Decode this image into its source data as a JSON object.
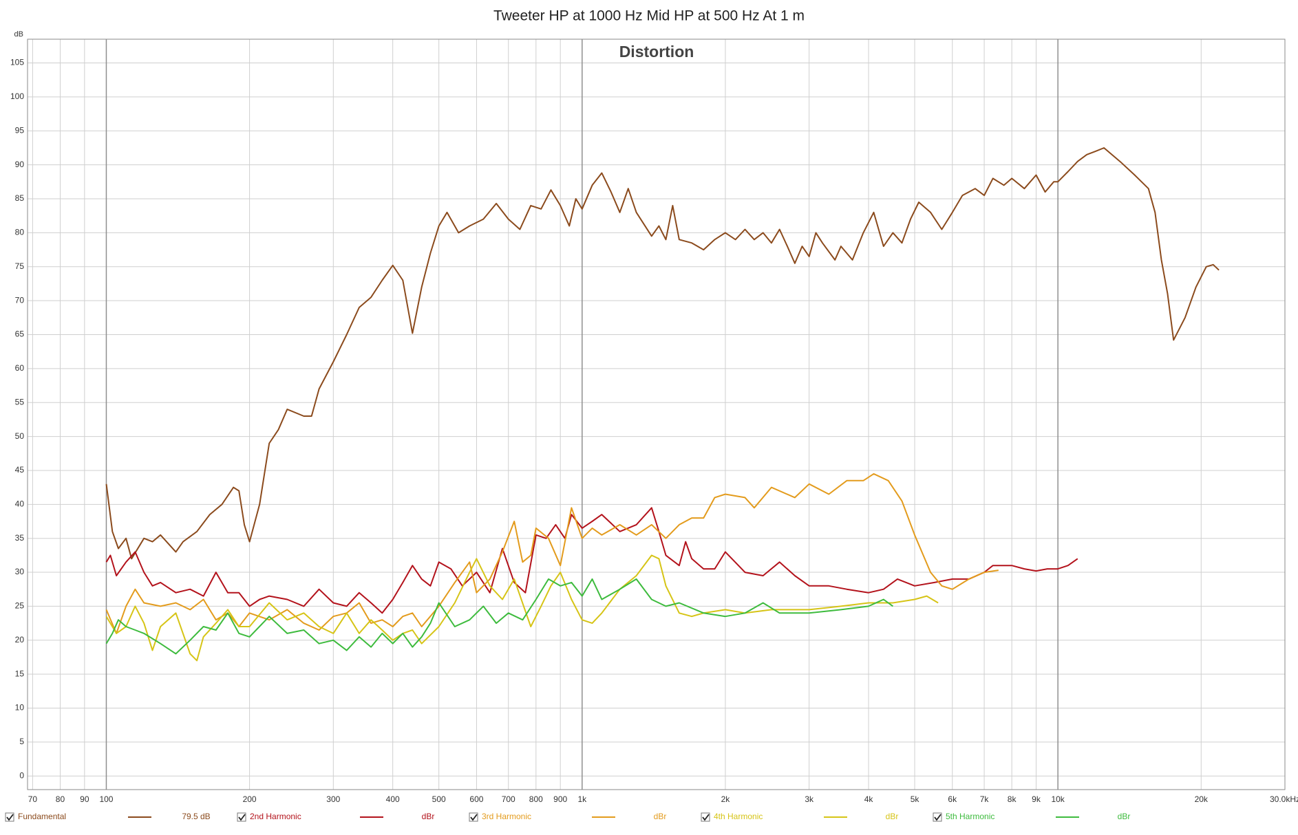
{
  "chart_data": {
    "type": "line",
    "title": "Tweeter HP at 1000 Hz Mid HP at 500 Hz At 1 m",
    "annotation": "Distortion",
    "y_label": "dB",
    "log_x": true,
    "grid": true,
    "legend_position": "bottom",
    "xlim": [
      68.3,
      30000
    ],
    "ylim": [
      -2,
      108.5
    ],
    "xticks": [
      70,
      80,
      90,
      100,
      200,
      300,
      400,
      500,
      600,
      700,
      800,
      900,
      {
        "value": 1000,
        "label": "1k"
      },
      {
        "value": 2000,
        "label": "2k"
      },
      {
        "value": 3000,
        "label": "3k"
      },
      {
        "value": 4000,
        "label": "4k"
      },
      {
        "value": 5000,
        "label": "5k"
      },
      {
        "value": 6000,
        "label": "6k"
      },
      {
        "value": 7000,
        "label": "7k"
      },
      {
        "value": 8000,
        "label": "8k"
      },
      {
        "value": 9000,
        "label": "9k"
      },
      {
        "value": 10000,
        "label": "10k"
      },
      {
        "value": 20000,
        "label": "20k"
      },
      {
        "value": 30000,
        "label": "30.0kHz"
      }
    ],
    "yticks": [
      0,
      5,
      10,
      15,
      20,
      25,
      30,
      35,
      40,
      45,
      50,
      55,
      60,
      65,
      70,
      75,
      80,
      85,
      90,
      95,
      100,
      105
    ],
    "series": [
      {
        "name": "Fundamental",
        "color": "#8b4a1c",
        "legend_value": "79.5 dB",
        "x": [
          100,
          103,
          106,
          110,
          113,
          120,
          125,
          130,
          140,
          145,
          155,
          165,
          175,
          185,
          190,
          195,
          200,
          210,
          220,
          230,
          240,
          260,
          270,
          280,
          300,
          320,
          340,
          360,
          380,
          400,
          420,
          440,
          460,
          480,
          500,
          520,
          550,
          580,
          620,
          660,
          700,
          740,
          780,
          820,
          860,
          900,
          940,
          970,
          1000,
          1050,
          1100,
          1150,
          1200,
          1250,
          1300,
          1400,
          1450,
          1500,
          1550,
          1600,
          1700,
          1800,
          1900,
          2000,
          2100,
          2200,
          2300,
          2400,
          2500,
          2600,
          2700,
          2800,
          2900,
          3000,
          3100,
          3200,
          3400,
          3500,
          3700,
          3900,
          4100,
          4300,
          4500,
          4700,
          4900,
          5100,
          5400,
          5700,
          6000,
          6300,
          6700,
          7000,
          7300,
          7700,
          8000,
          8500,
          9000,
          9400,
          9800,
          10000,
          10500,
          11000,
          11500,
          12000,
          12500,
          13500,
          14500,
          15500,
          16000,
          16500,
          17000,
          17500,
          18500,
          19500,
          20500,
          21200,
          21800
        ],
        "values": [
          43,
          36,
          33.5,
          35,
          32,
          35,
          34.5,
          35.5,
          33,
          34.5,
          36,
          38.5,
          40,
          42.5,
          42,
          37,
          34.5,
          40,
          49,
          51,
          54,
          53,
          53,
          57,
          61,
          65,
          69,
          70.5,
          73,
          75.2,
          73,
          65.2,
          72,
          77,
          81,
          83,
          80,
          81,
          82,
          84.3,
          82,
          80.5,
          84,
          83.5,
          86.3,
          84,
          81,
          85,
          83.5,
          87,
          88.8,
          86,
          83,
          86.5,
          83,
          79.5,
          81,
          79,
          84,
          79,
          78.5,
          77.5,
          79,
          80,
          79,
          80.5,
          79,
          80,
          78.5,
          80.5,
          78,
          75.5,
          78,
          76.5,
          80,
          78.5,
          76,
          78,
          76,
          80,
          83,
          78,
          80,
          78.5,
          82,
          84.5,
          83,
          80.5,
          83,
          85.5,
          86.5,
          85.5,
          88,
          87,
          88,
          86.5,
          88.5,
          86,
          87.5,
          87.5,
          89,
          90.5,
          91.5,
          92,
          92.5,
          90.5,
          88.5,
          86.5,
          83,
          76,
          71,
          64.2,
          67.5,
          72,
          75,
          75.3,
          74.5
        ]
      },
      {
        "name": "2nd Harmonic",
        "color": "#b3121b",
        "legend_value": "dBr",
        "x": [
          100,
          102,
          105,
          110,
          115,
          120,
          125,
          130,
          140,
          150,
          160,
          170,
          180,
          190,
          200,
          210,
          220,
          240,
          260,
          280,
          300,
          320,
          340,
          360,
          380,
          400,
          420,
          440,
          460,
          480,
          500,
          530,
          560,
          600,
          640,
          680,
          720,
          760,
          800,
          840,
          880,
          920,
          950,
          1000,
          1050,
          1100,
          1200,
          1300,
          1400,
          1450,
          1500,
          1600,
          1650,
          1700,
          1800,
          1900,
          2000,
          2200,
          2400,
          2600,
          2800,
          3000,
          3300,
          3600,
          4000,
          4300,
          4600,
          5000,
          5500,
          6000,
          6500,
          7000,
          7300,
          8000,
          8500,
          9000,
          9500,
          10000,
          10500,
          11000
        ],
        "values": [
          31.5,
          32.5,
          29.5,
          31.5,
          33,
          30,
          28,
          28.5,
          27,
          27.5,
          26.5,
          30,
          27,
          27,
          25,
          26,
          26.5,
          26,
          25,
          27.5,
          25.5,
          25,
          27,
          25.5,
          24,
          26,
          28.5,
          31,
          29,
          28,
          31.5,
          30.5,
          28,
          30,
          27,
          33.5,
          28.5,
          27,
          35.5,
          35,
          37,
          35,
          38.5,
          36.5,
          37.5,
          38.5,
          36,
          37,
          39.5,
          36,
          32.5,
          31,
          34.5,
          32,
          30.5,
          30.5,
          33,
          30,
          29.5,
          31.5,
          29.5,
          28,
          28,
          27.5,
          27,
          27.5,
          29,
          28,
          28.5,
          29,
          29,
          30,
          31,
          31,
          30.5,
          30.2,
          30.5,
          30.5,
          31,
          32
        ]
      },
      {
        "name": "3rd Harmonic",
        "color": "#e39b1c",
        "legend_value": "dBr",
        "x": [
          100,
          105,
          110,
          115,
          120,
          130,
          140,
          150,
          160,
          170,
          180,
          190,
          200,
          220,
          240,
          260,
          280,
          300,
          320,
          340,
          360,
          380,
          400,
          420,
          440,
          460,
          500,
          540,
          580,
          600,
          640,
          680,
          720,
          750,
          780,
          800,
          850,
          900,
          950,
          1000,
          1050,
          1100,
          1200,
          1300,
          1400,
          1500,
          1600,
          1700,
          1800,
          1900,
          2000,
          2200,
          2300,
          2500,
          2800,
          3000,
          3300,
          3600,
          3900,
          4100,
          4400,
          4700,
          5000,
          5400,
          5700,
          6000,
          6500,
          7000,
          7500
        ],
        "values": [
          24.5,
          21,
          25,
          27.5,
          25.5,
          25,
          25.5,
          24.5,
          26,
          23,
          24,
          22,
          24,
          23,
          24.5,
          22.5,
          21.5,
          23.5,
          24,
          25.5,
          22.5,
          23,
          22,
          23.5,
          24,
          22,
          25,
          28.5,
          31.5,
          27,
          29,
          33,
          37.5,
          31.5,
          32.5,
          36.5,
          35,
          31,
          39.5,
          35,
          36.5,
          35.5,
          37,
          35.5,
          37,
          35,
          37,
          38,
          38,
          41,
          41.5,
          41,
          39.5,
          42.5,
          41,
          43,
          41.5,
          43.5,
          43.5,
          44.5,
          43.5,
          40.5,
          35.5,
          30,
          28,
          27.5,
          29,
          30,
          30.3
        ]
      },
      {
        "name": "4th Harmonic",
        "color": "#d6c416",
        "legend_value": "dBr",
        "x": [
          100,
          105,
          110,
          115,
          120,
          125,
          130,
          140,
          150,
          155,
          160,
          170,
          180,
          190,
          200,
          220,
          240,
          260,
          280,
          300,
          320,
          340,
          360,
          380,
          400,
          420,
          440,
          460,
          500,
          540,
          580,
          600,
          640,
          680,
          720,
          780,
          820,
          860,
          900,
          950,
          1000,
          1050,
          1100,
          1200,
          1300,
          1400,
          1450,
          1500,
          1600,
          1700,
          1800,
          2000,
          2200,
          2500,
          3000,
          3500,
          4000,
          4500,
          5000,
          5300,
          5600
        ],
        "values": [
          23.5,
          21,
          22,
          25,
          22.5,
          18.5,
          22,
          24,
          18,
          17,
          20.5,
          22.5,
          24.5,
          22,
          22,
          25.5,
          23,
          24,
          22,
          21,
          24,
          21,
          23,
          21.5,
          20,
          21,
          21.5,
          19.5,
          22,
          25.5,
          30,
          32,
          28,
          26,
          29,
          22,
          25,
          28,
          30,
          26,
          23,
          22.5,
          24,
          27.5,
          29.5,
          32.5,
          32,
          28,
          24,
          23.5,
          24,
          24.5,
          24,
          24.5,
          24.5,
          25,
          25.5,
          25.5,
          26,
          26.5,
          25.5
        ]
      },
      {
        "name": "5th Harmonic",
        "color": "#3dbb3d",
        "legend_value": "dBr",
        "x": [
          100,
          103,
          106,
          110,
          115,
          120,
          130,
          140,
          150,
          160,
          170,
          180,
          190,
          200,
          220,
          240,
          260,
          280,
          300,
          320,
          340,
          360,
          380,
          400,
          420,
          440,
          460,
          480,
          500,
          540,
          580,
          620,
          660,
          700,
          750,
          800,
          850,
          900,
          950,
          1000,
          1050,
          1100,
          1200,
          1300,
          1400,
          1500,
          1600,
          1800,
          2000,
          2200,
          2400,
          2600,
          3000,
          3500,
          4000,
          4300,
          4500
        ],
        "values": [
          19.5,
          21,
          23,
          22,
          21.5,
          21,
          19.5,
          18,
          20,
          22,
          21.5,
          24,
          21,
          20.5,
          23.5,
          21,
          21.5,
          19.5,
          20,
          18.5,
          20.5,
          19,
          21,
          19.5,
          21,
          19,
          20.5,
          22.5,
          25.5,
          22,
          23,
          25,
          22.5,
          24,
          23,
          26,
          29,
          28,
          28.5,
          26.5,
          29,
          26,
          27.5,
          29,
          26,
          25,
          25.5,
          24,
          23.5,
          24,
          25.5,
          24,
          24,
          24.5,
          25,
          26,
          25
        ]
      }
    ]
  }
}
